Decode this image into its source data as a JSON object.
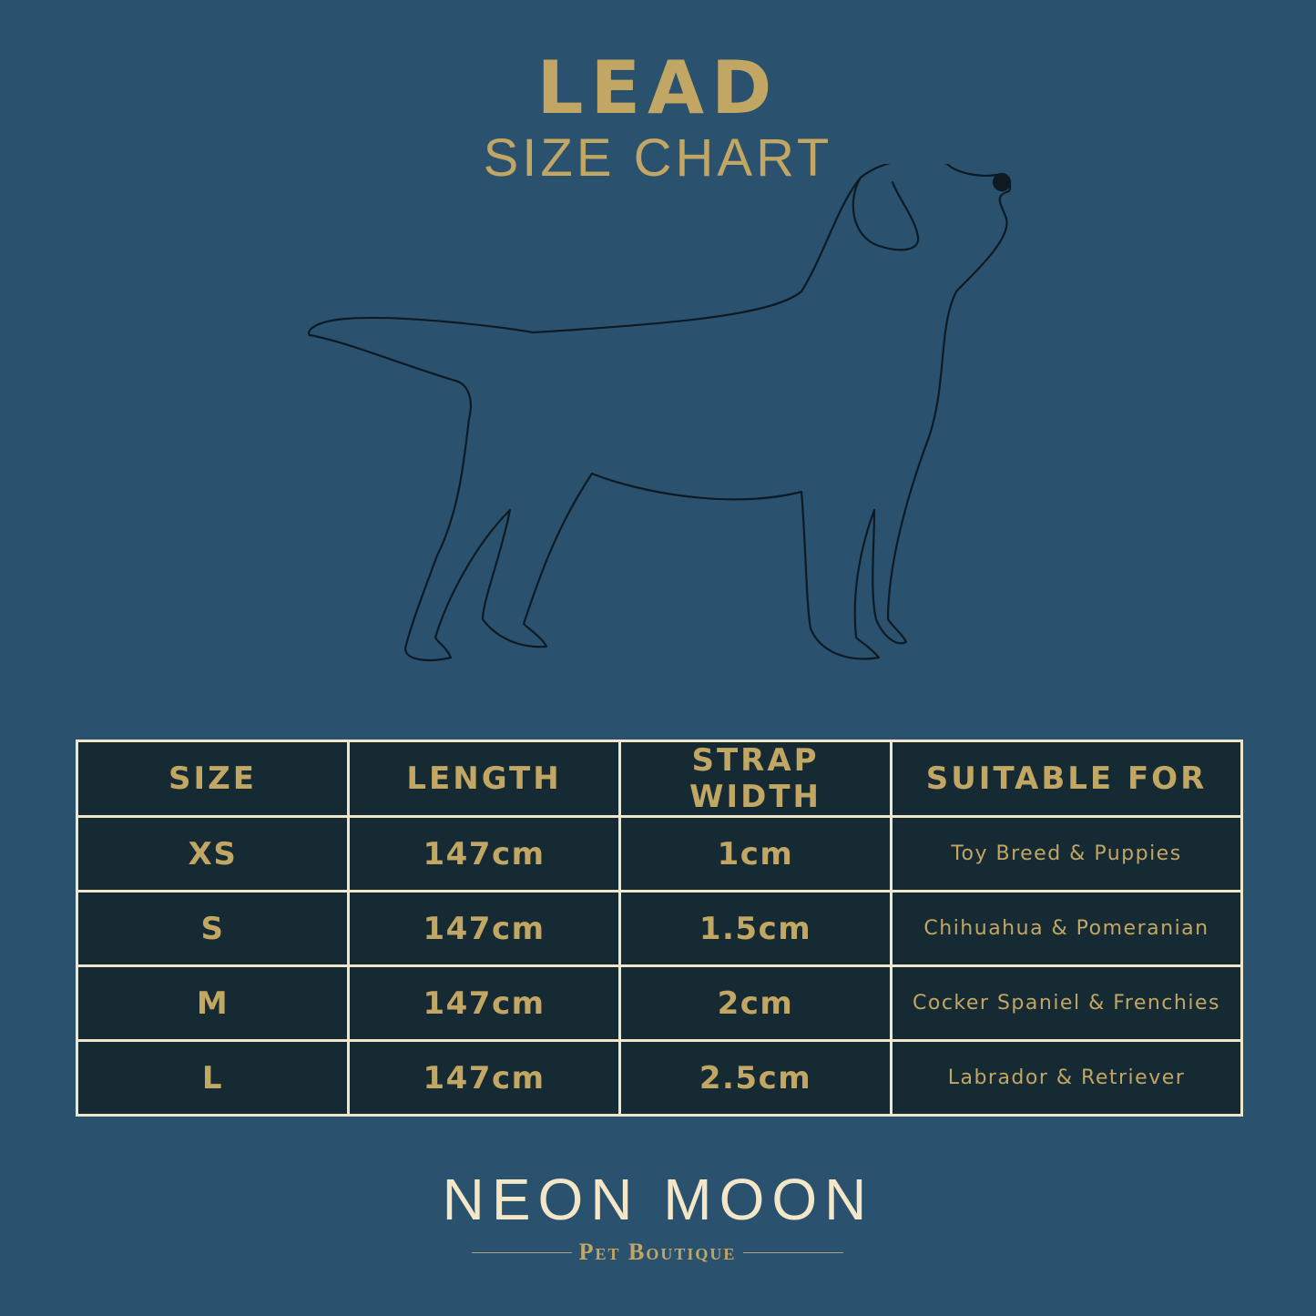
{
  "header": {
    "title": "LEAD",
    "subtitle": "SIZE CHART"
  },
  "table": {
    "headers": [
      "SIZE",
      "LENGTH",
      "STRAP WIDTH",
      "SUITABLE FOR"
    ],
    "rows": [
      [
        "XS",
        "147cm",
        "1cm",
        "Toy Breed & Puppies"
      ],
      [
        "S",
        "147cm",
        "1.5cm",
        "Chihuahua & Pomeranian"
      ],
      [
        "M",
        "147cm",
        "2cm",
        "Cocker Spaniel & Frenchies"
      ],
      [
        "L",
        "147cm",
        "2.5cm",
        "Labrador & Retriever"
      ]
    ]
  },
  "brand": {
    "name": "NEON MOON",
    "tagline": "Pet Boutique"
  },
  "colors": {
    "background": "#2a526f",
    "table": "#152a33",
    "gold": "#c2a664",
    "border": "#f0e6cc"
  }
}
